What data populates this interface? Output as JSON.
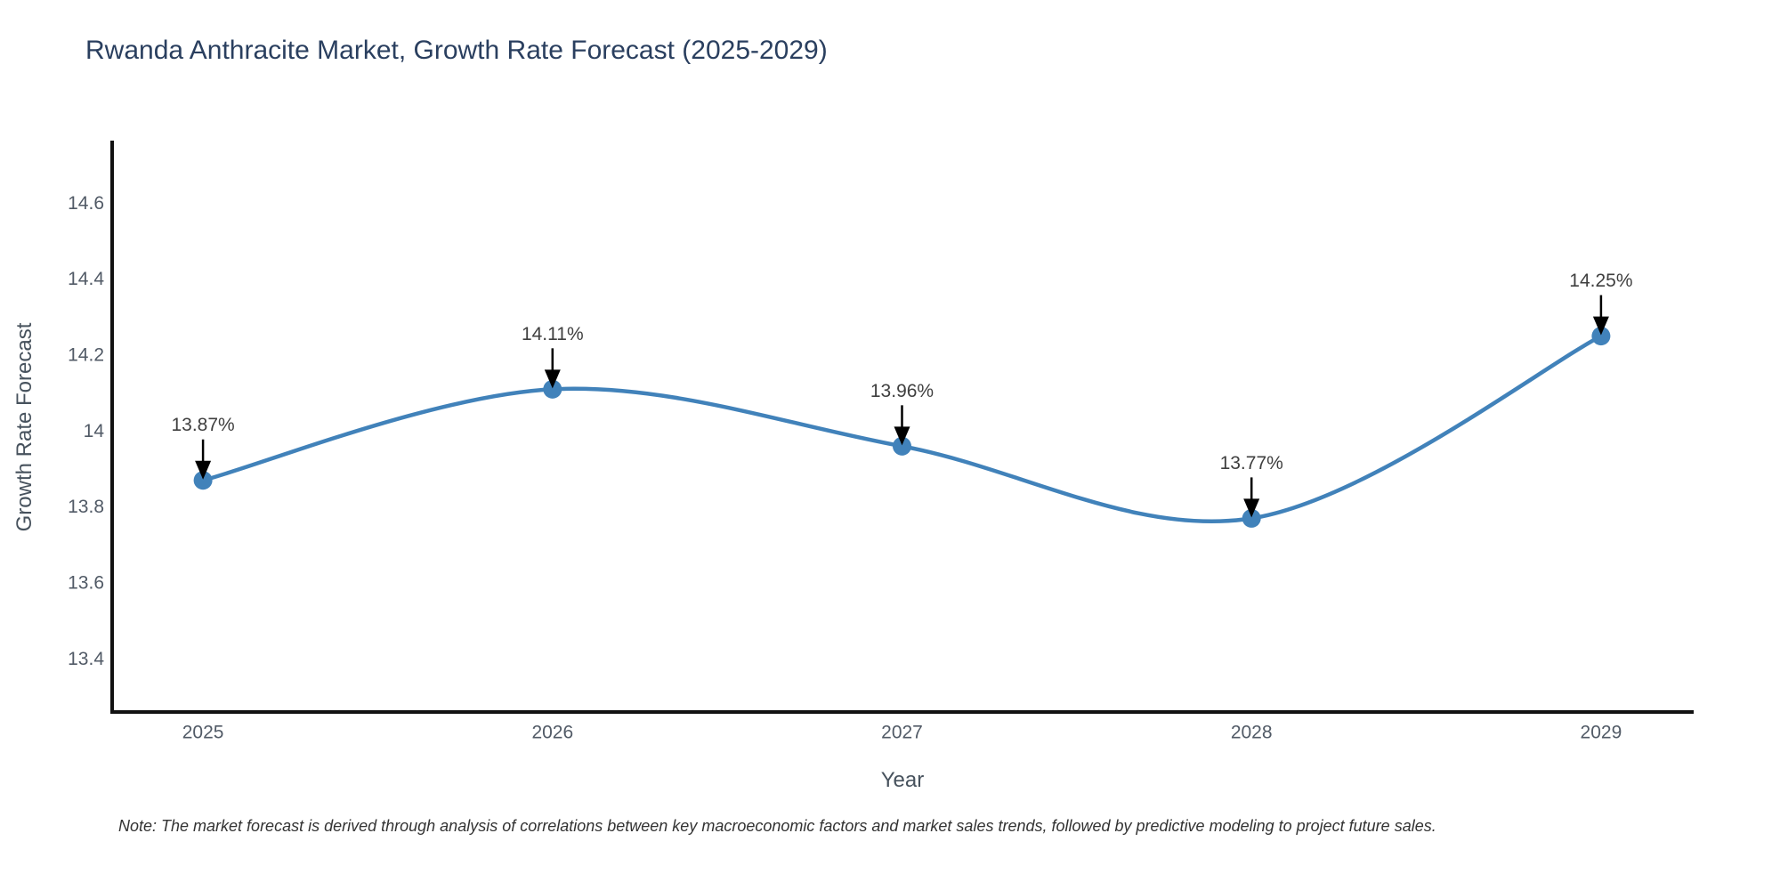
{
  "chart_data": {
    "type": "line",
    "title": "Rwanda Anthracite Market, Growth Rate Forecast (2025-2029)",
    "xlabel": "Year",
    "ylabel": "Growth Rate Forecast",
    "categories": [
      2025,
      2026,
      2027,
      2028,
      2029
    ],
    "series": [
      {
        "name": "Growth Rate Forecast",
        "values": [
          13.87,
          14.11,
          13.96,
          13.77,
          14.25
        ]
      }
    ],
    "point_labels": [
      "13.87%",
      "14.11%",
      "13.96%",
      "13.77%",
      "14.25%"
    ],
    "y_tick_labels": [
      "13.4",
      "13.6",
      "13.8",
      "14",
      "14.2",
      "14.4",
      "14.6"
    ],
    "xlim": [
      2024.74,
      2029.26
    ],
    "ylim": [
      13.26,
      14.76
    ],
    "line_shape": "spline",
    "grid": false,
    "legend": "none",
    "note": "Note: The market forecast is derived through analysis of correlations between key macroeconomic factors and market sales trends, followed by predictive modeling to project future sales.",
    "colors": {
      "line": "#4182ba",
      "marker": "#4182ba",
      "annotation_text": "#3f3f3f",
      "arrow": "#000000",
      "axis": "#111111",
      "tick_label": "#515a66",
      "title": "#2a3f5f",
      "axis_title": "#47525d",
      "note": "#333333",
      "background": "#ffffff"
    }
  }
}
